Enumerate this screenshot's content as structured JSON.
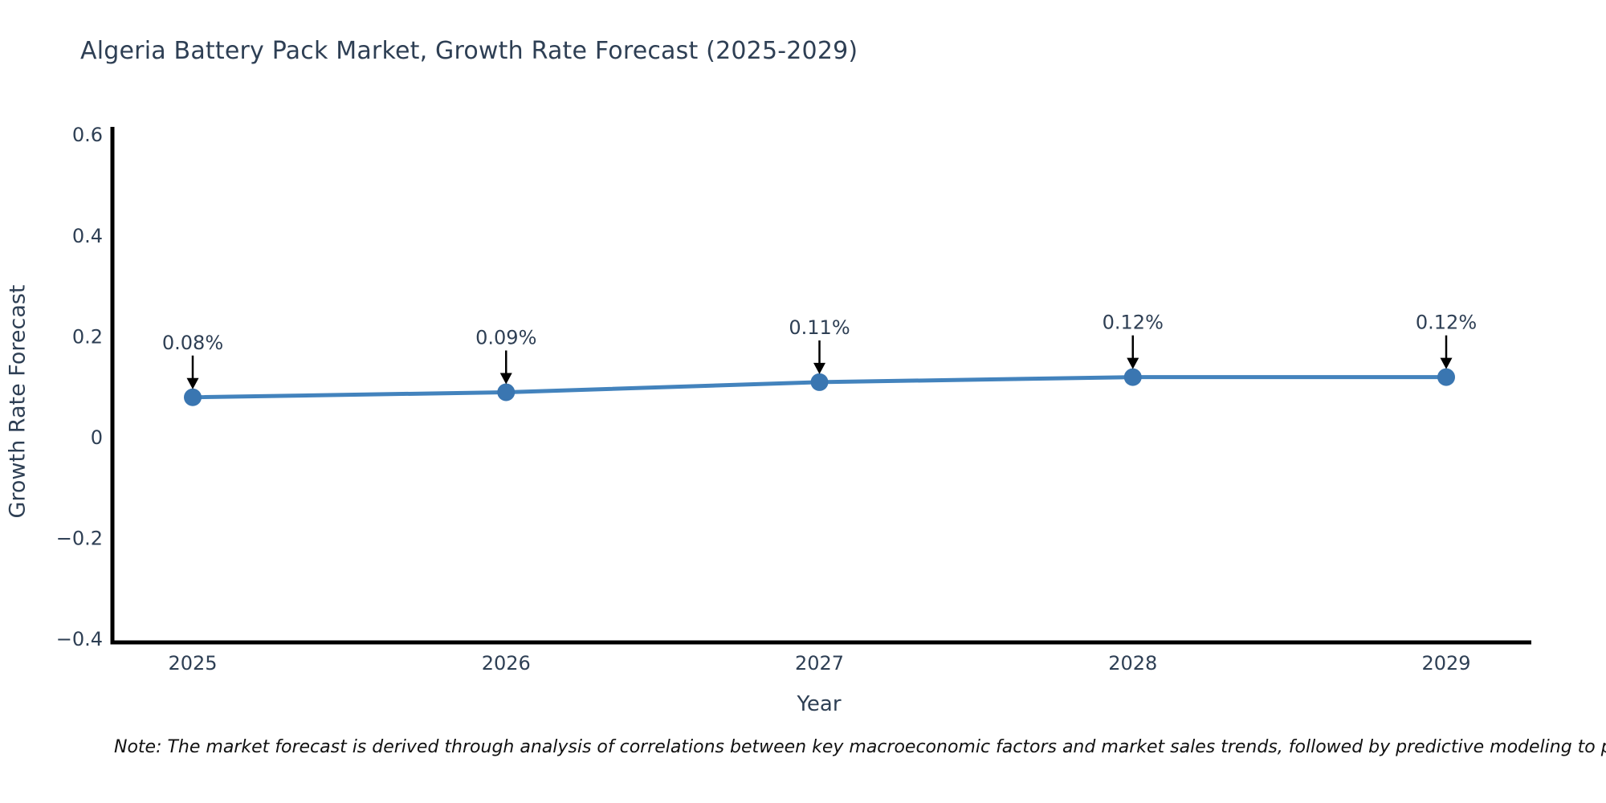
{
  "title": "Algeria Battery Pack Market, Growth Rate Forecast (2025-2029)",
  "note": "Note: The market forecast is derived through analysis of correlations between key macroeconomic factors and market sales trends, followed by predictive modeling to project future sales",
  "chart_data": {
    "type": "line",
    "title": "Algeria Battery Pack Market, Growth Rate Forecast (2025-2029)",
    "xlabel": "Year",
    "ylabel": "Growth Rate Forecast",
    "x": [
      2025,
      2026,
      2027,
      2028,
      2029
    ],
    "values": [
      0.08,
      0.09,
      0.11,
      0.12,
      0.12
    ],
    "data_labels": [
      "0.08%",
      "0.09%",
      "0.11%",
      "0.12%",
      "0.12%"
    ],
    "yticks": [
      0.6,
      0.4,
      0.2,
      0,
      -0.2,
      -0.4
    ],
    "ytick_labels": [
      "0.6",
      "0.4",
      "0.2",
      "0",
      "−0.2",
      "−0.4"
    ],
    "xtick_labels": [
      "2025",
      "2026",
      "2027",
      "2028",
      "2029"
    ],
    "ylim": [
      -0.41,
      0.62
    ],
    "grid": false,
    "legend": "none",
    "annotation_arrows": true,
    "colors": {
      "line": "#4383bd",
      "marker": "#3a76b1",
      "axis": "#000000",
      "text": "#2e3f54",
      "annotation": "#2e3f54",
      "arrow": "#000000",
      "note": "#111111",
      "background": "#ffffff"
    }
  }
}
